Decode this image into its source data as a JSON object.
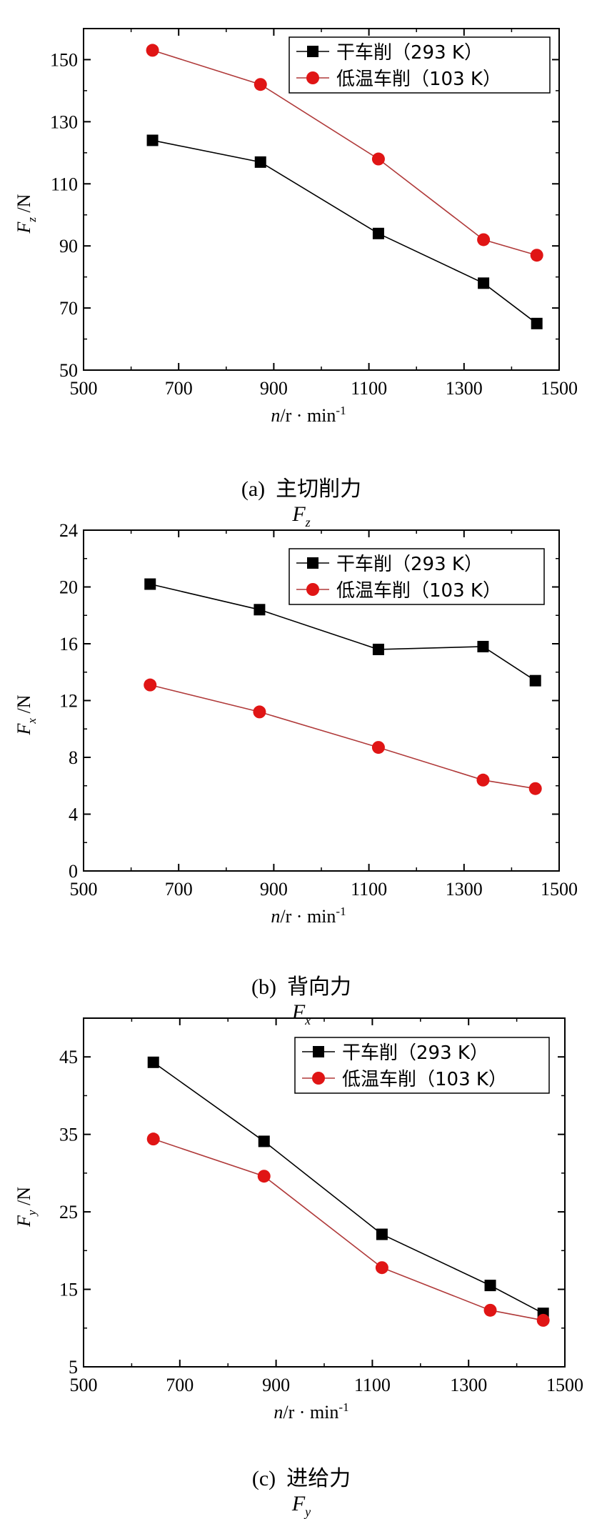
{
  "charts": [
    {
      "caption": {
        "text": "(a)  主切削力",
        "symbol": "F",
        "sub": "z"
      },
      "chart_data": {
        "type": "line",
        "x": [
          645,
          872,
          1120,
          1341,
          1453
        ],
        "series": [
          {
            "name": "干车削（293 K）",
            "values": [
              124,
              117,
              94,
              78,
              65
            ],
            "color": "#000000",
            "marker": "square"
          },
          {
            "name": "低温车削（103 K）",
            "values": [
              153,
              142,
              118,
              92,
              87
            ],
            "color": "#e01515",
            "marker": "circle"
          }
        ],
        "xlim": [
          500,
          1500
        ],
        "ylim": [
          50,
          160
        ],
        "xticks": [
          500,
          700,
          900,
          1100,
          1300,
          1500
        ],
        "yticks": [
          50,
          70,
          90,
          110,
          130,
          150
        ],
        "xlabel": {
          "var": "n",
          "unit": "/r · min",
          "sup": "-1"
        },
        "ylabel": {
          "var": "F",
          "sub": "z",
          "unit": " /N"
        },
        "legend": "top-right"
      }
    },
    {
      "caption": {
        "text": "(b)  背向力",
        "symbol": "F",
        "sub": "x"
      },
      "chart_data": {
        "type": "line",
        "x": [
          640,
          870,
          1120,
          1340,
          1450
        ],
        "series": [
          {
            "name": "干车削（293 K）",
            "values": [
              20.2,
              18.4,
              15.6,
              15.8,
              13.4
            ],
            "color": "#000000",
            "marker": "square"
          },
          {
            "name": "低温车削（103 K）",
            "values": [
              13.1,
              11.2,
              8.7,
              6.4,
              5.8
            ],
            "color": "#e01515",
            "marker": "circle"
          }
        ],
        "xlim": [
          500,
          1500
        ],
        "ylim": [
          0,
          24
        ],
        "xticks": [
          500,
          700,
          900,
          1100,
          1300,
          1500
        ],
        "yticks": [
          0,
          4,
          8,
          12,
          16,
          20,
          24
        ],
        "xlabel": {
          "var": "n",
          "unit": "/r · min",
          "sup": "-1"
        },
        "ylabel": {
          "var": "F",
          "sub": "x",
          "unit": " /N"
        },
        "legend": "top-right"
      }
    },
    {
      "caption": {
        "text": "(c)  进给力",
        "symbol": "F",
        "sub": "y"
      },
      "chart_data": {
        "type": "line",
        "x": [
          645,
          875,
          1120,
          1345,
          1455
        ],
        "series": [
          {
            "name": "干车削（293 K）",
            "values": [
              44.3,
              34.1,
              22.1,
              15.5,
              11.9
            ],
            "color": "#000000",
            "marker": "square"
          },
          {
            "name": "低温车削（103 K）",
            "values": [
              34.4,
              29.6,
              17.8,
              12.3,
              11.0
            ],
            "color": "#e01515",
            "marker": "circle"
          }
        ],
        "xlim": [
          500,
          1500
        ],
        "ylim": [
          5,
          50
        ],
        "xticks": [
          500,
          700,
          900,
          1100,
          1300,
          1500
        ],
        "yticks": [
          5,
          15,
          25,
          35,
          45
        ],
        "xlabel": {
          "var": "n",
          "unit": "/r · min",
          "sup": "-1"
        },
        "ylabel": {
          "var": "F",
          "sub": "y",
          "unit": " /N"
        },
        "legend": "top-right"
      }
    }
  ]
}
